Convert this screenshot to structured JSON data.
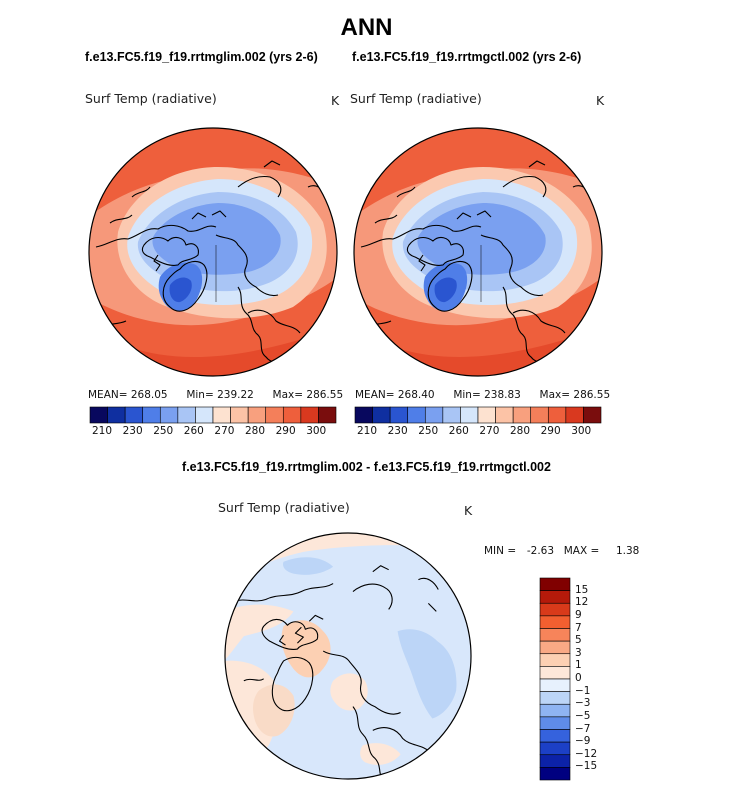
{
  "title": "ANN",
  "colors": {
    "abs_scale": [
      "#08085e",
      "#0f2fa0",
      "#2a55d0",
      "#4f7ee8",
      "#7aa0f0",
      "#a9c5f5",
      "#d5e6fb",
      "#fde2d0",
      "#fcc3a6",
      "#f8a07e",
      "#f47f5a",
      "#ee5f3c",
      "#d9391f",
      "#7a0d0d"
    ],
    "diff_scale": [
      "#800000",
      "#b51a0a",
      "#d93a1a",
      "#f25f30",
      "#f7845a",
      "#f9a985",
      "#fcd0b3",
      "#fde7d9",
      "#e7f1fd",
      "#bcd5f7",
      "#8fb4f2",
      "#5f8ce9",
      "#3562dd",
      "#1c40c6",
      "#0c22a8",
      "#000080"
    ]
  },
  "chart_data": [
    {
      "type": "heatmap",
      "title": "f.e13.FC5.f19_f19.rrtmglim.002 (yrs 2-6)",
      "variable": "Surf Temp (radiative)",
      "units": "K",
      "projection": "north polar stereographic",
      "mean_label": "MEAN=",
      "mean": "268.05",
      "min_label": "Min=",
      "min": "239.22",
      "max_label": "Max=",
      "max": "286.55",
      "colorbar_ticks": [
        "210",
        "230",
        "250",
        "260",
        "270",
        "280",
        "290",
        "300"
      ]
    },
    {
      "type": "heatmap",
      "title": "f.e13.FC5.f19_f19.rrtmgctl.002 (yrs 2-6)",
      "variable": "Surf Temp (radiative)",
      "units": "K",
      "projection": "north polar stereographic",
      "mean_label": "MEAN=",
      "mean": "268.40",
      "min_label": "Min=",
      "min": "238.83",
      "max_label": "Max=",
      "max": "286.55",
      "colorbar_ticks": [
        "210",
        "230",
        "250",
        "260",
        "270",
        "280",
        "290",
        "300"
      ]
    },
    {
      "type": "heatmap",
      "title": "f.e13.FC5.f19_f19.rrtmglim.002 - f.e13.FC5.f19_f19.rrtmgctl.002",
      "variable": "Surf Temp (radiative)",
      "units": "K",
      "projection": "north polar stereographic",
      "min_label": "MIN =",
      "min": "-2.63",
      "max_label": "MAX =",
      "max": "1.38",
      "colorbar_levels": [
        "15",
        "12",
        "9",
        "7",
        "5",
        "3",
        "1",
        "0",
        "−1",
        "−3",
        "−5",
        "−7",
        "−9",
        "−12",
        "−15"
      ]
    }
  ]
}
